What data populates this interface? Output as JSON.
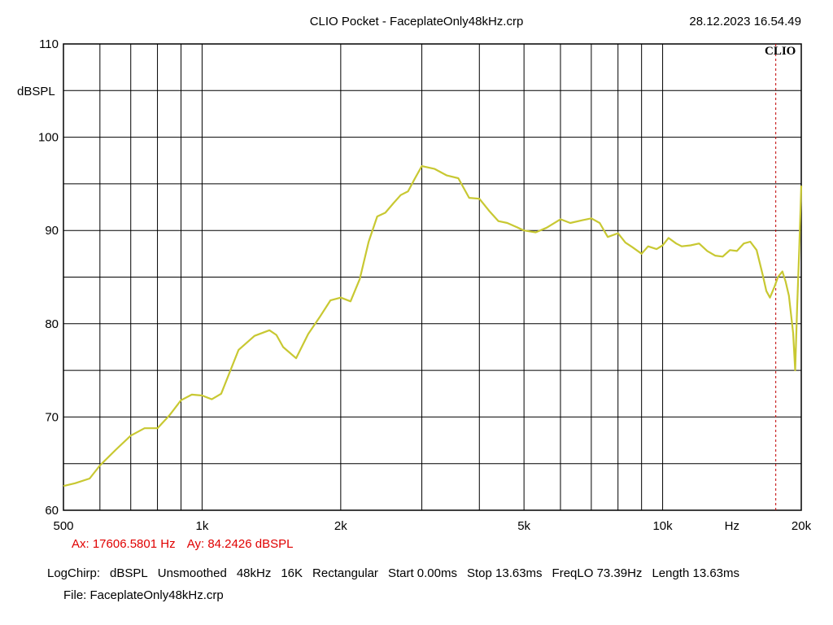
{
  "header": {
    "title": "CLIO Pocket - FaceplateOnly48kHz.crp",
    "datetime": "28.12.2023 16.54.49",
    "logo": "CLIO"
  },
  "cursor": {
    "ax_label": "Ax: 17606.5801 Hz",
    "ay_label": "Ay: 84.2426 dBSPL",
    "x_hz": 17606.5801,
    "y_db": 84.2426
  },
  "settings": [
    "LogChirp:",
    "dBSPL",
    "Unsmoothed",
    "48kHz",
    "16K",
    "Rectangular",
    "Start 0.00ms",
    "Stop 13.63ms",
    "FreqLO 73.39Hz",
    "Length 13.63ms"
  ],
  "file_label": "File: FaceplateOnly48kHz.crp",
  "colors": {
    "curve": "#c8c832",
    "cursor": "#c00000",
    "grid": "#000000",
    "cursor_text": "#e00000"
  },
  "chart_data": {
    "type": "line",
    "title": "CLIO Pocket - FaceplateOnly48kHz.crp",
    "xlabel": "Hz",
    "ylabel": "dBSPL",
    "x_scale": "log",
    "xlim": [
      500,
      20000
    ],
    "ylim": [
      60,
      110
    ],
    "grid": true,
    "x_ticks": [
      {
        "value": 500,
        "label": "500"
      },
      {
        "value": 1000,
        "label": "1k"
      },
      {
        "value": 2000,
        "label": "2k"
      },
      {
        "value": 5000,
        "label": "5k"
      },
      {
        "value": 10000,
        "label": "10k"
      },
      {
        "value": 20000,
        "label": "20k"
      }
    ],
    "x_unit_label": {
      "value": 14142,
      "label": "Hz"
    },
    "x_gridlines": [
      600,
      700,
      800,
      900,
      1000,
      2000,
      3000,
      4000,
      5000,
      6000,
      7000,
      8000,
      9000,
      10000
    ],
    "y_ticks": [
      60,
      70,
      80,
      90,
      100,
      110
    ],
    "y_minor_gridlines": [
      65,
      75,
      85,
      95,
      105
    ],
    "series": [
      {
        "x": [
          500,
          530,
          570,
          600,
          650,
          700,
          750,
          800,
          850,
          900,
          950,
          1000,
          1050,
          1100,
          1200,
          1300,
          1400,
          1450,
          1500,
          1600,
          1700,
          1800,
          1900,
          2000,
          2100,
          2200,
          2300,
          2400,
          2500,
          2600,
          2700,
          2800,
          2900,
          3000,
          3200,
          3400,
          3600,
          3800,
          4000,
          4200,
          4400,
          4600,
          4800,
          5000,
          5300,
          5600,
          6000,
          6300,
          6700,
          7000,
          7300,
          7600,
          8000,
          8300,
          8600,
          9000,
          9300,
          9700,
          10000,
          10300,
          10700,
          11000,
          11500,
          12000,
          12500,
          13000,
          13500,
          14000,
          14500,
          15000,
          15500,
          16000,
          16500,
          16800,
          17100,
          17500,
          17800,
          18200,
          18500,
          18800,
          19000,
          19200,
          19400,
          19600,
          19800,
          20000
        ],
        "y": [
          62.6,
          62.9,
          63.4,
          64.8,
          66.5,
          68.0,
          68.8,
          68.8,
          70.2,
          71.8,
          72.4,
          72.3,
          71.9,
          72.5,
          77.2,
          78.7,
          79.3,
          78.8,
          77.5,
          76.3,
          78.9,
          80.7,
          82.5,
          82.8,
          82.4,
          84.8,
          88.8,
          91.5,
          91.9,
          92.9,
          93.8,
          94.2,
          95.6,
          96.9,
          96.6,
          95.9,
          95.6,
          93.5,
          93.4,
          92.1,
          91.0,
          90.8,
          90.4,
          90.0,
          89.8,
          90.3,
          91.2,
          90.8,
          91.1,
          91.3,
          90.8,
          89.3,
          89.7,
          88.7,
          88.2,
          87.5,
          88.3,
          88.0,
          88.4,
          89.2,
          88.6,
          88.3,
          88.4,
          88.6,
          87.8,
          87.3,
          87.2,
          87.9,
          87.8,
          88.6,
          88.8,
          87.9,
          85.2,
          83.5,
          82.8,
          84.0,
          85.0,
          85.6,
          84.5,
          83.0,
          81.0,
          79.0,
          75.0,
          82.0,
          88.0,
          94.8
        ]
      }
    ]
  }
}
